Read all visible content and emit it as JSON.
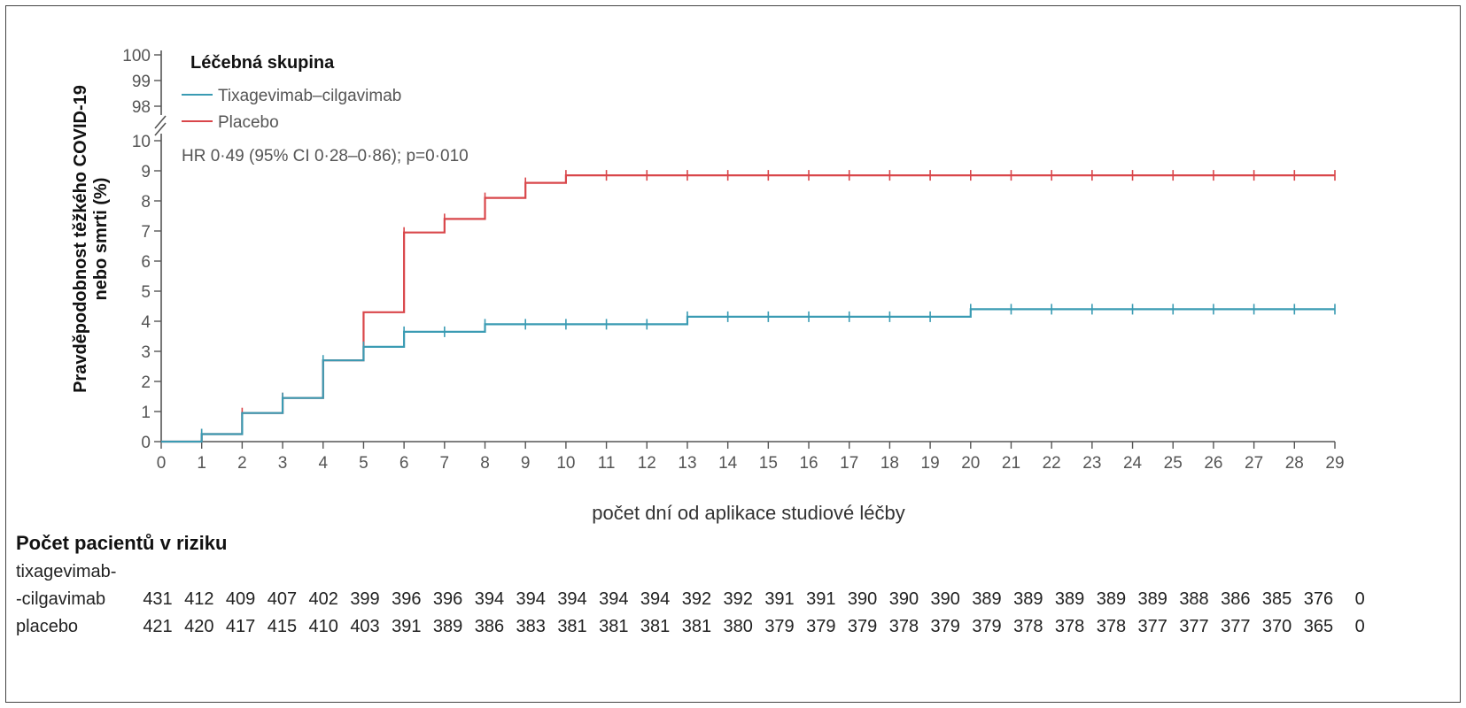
{
  "chart_data": {
    "type": "line",
    "ylabel_line1": "Pravděpodobnost těžkého COVID-19",
    "ylabel_line2": "nebo smrti (%)",
    "xlabel": "počet dní od aplikace studiové léčby",
    "legend_title": "Léčebná skupina",
    "legend_position": "top-left",
    "annotation": "HR 0·49 (95% CI 0·28–0·86); p=0·010",
    "xlim": [
      0,
      29
    ],
    "ylim": [
      0,
      10
    ],
    "y_break_ticks": [
      98,
      99,
      100
    ],
    "x_ticks": [
      0,
      1,
      2,
      3,
      4,
      5,
      6,
      7,
      8,
      9,
      10,
      11,
      12,
      13,
      14,
      15,
      16,
      17,
      18,
      19,
      20,
      21,
      22,
      23,
      24,
      25,
      26,
      27,
      28,
      29
    ],
    "y_ticks": [
      0,
      1,
      2,
      3,
      4,
      5,
      6,
      7,
      8,
      9,
      10
    ],
    "grid": false,
    "series": [
      {
        "name": "Tixagevimab–cilgavimab",
        "color": "#3a9bb3",
        "step": true,
        "x": [
          0,
          1,
          2,
          3,
          4,
          5,
          6,
          7,
          8,
          9,
          10,
          11,
          12,
          13,
          14,
          15,
          16,
          17,
          18,
          19,
          20,
          21,
          22,
          23,
          24,
          25,
          26,
          27,
          28,
          29
        ],
        "y": [
          0,
          0.25,
          0.95,
          1.45,
          2.7,
          3.15,
          3.65,
          3.65,
          3.9,
          3.9,
          3.9,
          3.9,
          3.9,
          4.15,
          4.15,
          4.15,
          4.15,
          4.15,
          4.15,
          4.15,
          4.4,
          4.4,
          4.4,
          4.4,
          4.4,
          4.4,
          4.4,
          4.4,
          4.4,
          4.4
        ],
        "censor_x": [
          1,
          3,
          4,
          5,
          6,
          7,
          8,
          9,
          10,
          11,
          12,
          13,
          14,
          15,
          16,
          17,
          18,
          19,
          20,
          21,
          22,
          23,
          24,
          25,
          26,
          27,
          28,
          29
        ]
      },
      {
        "name": "Placebo",
        "color": "#d9464a",
        "step": true,
        "x": [
          0,
          1,
          2,
          3,
          4,
          5,
          6,
          7,
          8,
          9,
          10,
          11,
          12,
          13,
          14,
          15,
          16,
          17,
          18,
          19,
          20,
          21,
          22,
          23,
          24,
          25,
          26,
          27,
          28,
          29
        ],
        "y": [
          0,
          0.25,
          0.95,
          1.45,
          2.7,
          4.3,
          6.95,
          7.4,
          8.1,
          8.6,
          8.85,
          8.85,
          8.85,
          8.85,
          8.85,
          8.85,
          8.85,
          8.85,
          8.85,
          8.85,
          8.85,
          8.85,
          8.85,
          8.85,
          8.85,
          8.85,
          8.85,
          8.85,
          8.85,
          8.85
        ],
        "censor_x": [
          1,
          2,
          3,
          6,
          7,
          8,
          9,
          10,
          11,
          12,
          13,
          14,
          15,
          16,
          17,
          18,
          19,
          20,
          21,
          22,
          23,
          24,
          25,
          26,
          27,
          28,
          29
        ]
      }
    ]
  },
  "risk_table": {
    "title": "Počet pacientů v riziku",
    "rows": [
      {
        "label_line1": "tixagevimab-",
        "label_line2": "-cilgavimab",
        "values": [
          "431",
          "412",
          "409",
          "407",
          "402",
          "399",
          "396",
          "396",
          "394",
          "394",
          "394",
          "394",
          "394",
          "392",
          "392",
          "391",
          "391",
          "390",
          "390",
          "390",
          "389",
          "389",
          "389",
          "389",
          "389",
          "388",
          "386",
          "385",
          "376",
          "0"
        ]
      },
      {
        "label_line1": "",
        "label_line2": "placebo",
        "values": [
          "421",
          "420",
          "417",
          "415",
          "410",
          "403",
          "391",
          "389",
          "386",
          "383",
          "381",
          "381",
          "381",
          "381",
          "380",
          "379",
          "379",
          "379",
          "378",
          "379",
          "379",
          "378",
          "378",
          "378",
          "377",
          "377",
          "377",
          "370",
          "365",
          "0"
        ]
      }
    ]
  }
}
